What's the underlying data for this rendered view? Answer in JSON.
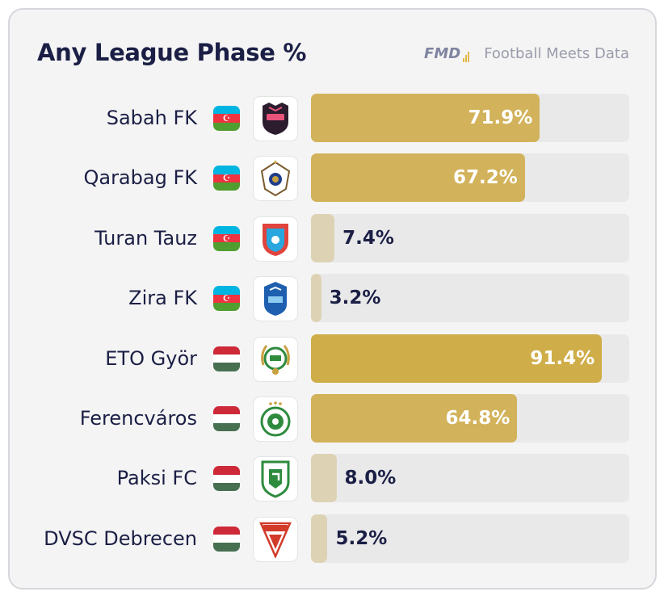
{
  "header": {
    "title": "Any League Phase %",
    "brand_logo": "FMD",
    "brand_name": "Football Meets Data"
  },
  "colors": {
    "title": "#1b1f45",
    "bar_high": "#d2b25a",
    "bar_top": "#cfad48",
    "bar_low": "#ddd3b4",
    "track": "#e9e9ea"
  },
  "chart_data": {
    "type": "bar",
    "orientation": "horizontal",
    "title": "Any League Phase %",
    "xlim": [
      0,
      100
    ],
    "grid": false,
    "categories": [
      "Sabah FK",
      "Qarabag FK",
      "Turan Tauz",
      "Zira FK",
      "ETO Györ",
      "Ferencváros",
      "Paksi FC",
      "DVSC Debrecen"
    ],
    "values": [
      71.9,
      67.2,
      7.4,
      3.2,
      91.4,
      64.8,
      8.0,
      5.2
    ],
    "value_labels": [
      "71.9%",
      "67.2%",
      "7.4%",
      "3.2%",
      "91.4%",
      "64.8%",
      "8.0%",
      "5.2%"
    ],
    "flags": [
      "azerbaijan",
      "azerbaijan",
      "azerbaijan",
      "azerbaijan",
      "hungary",
      "hungary",
      "hungary",
      "hungary"
    ],
    "crest_icons": [
      "sabah-crest-icon",
      "qarabag-crest-icon",
      "turan-tauz-crest-icon",
      "zira-crest-icon",
      "eto-gyor-crest-icon",
      "ferencvaros-crest-icon",
      "paksi-crest-icon",
      "dvsc-crest-icon"
    ]
  }
}
